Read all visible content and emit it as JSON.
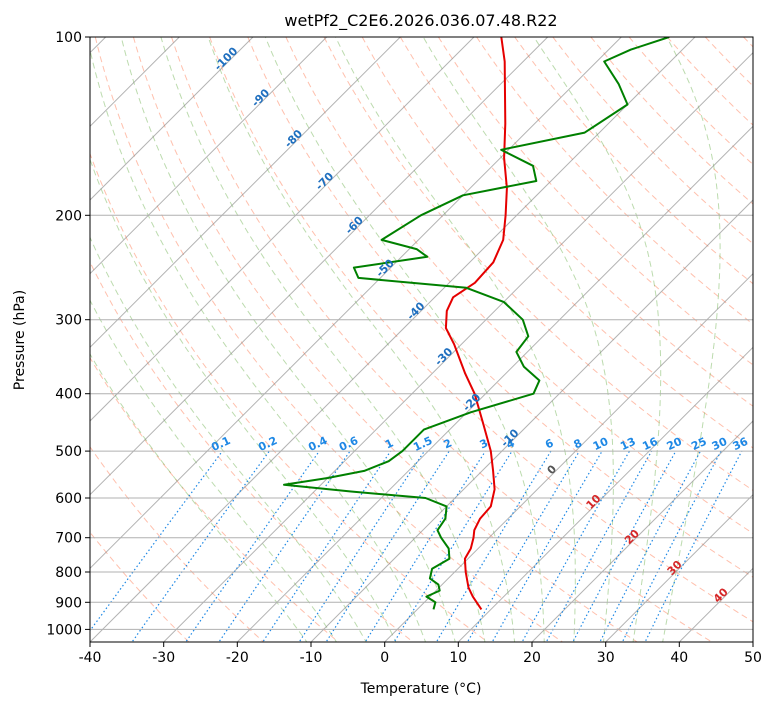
{
  "chart_data": {
    "type": "line",
    "diagram": "skew-T log-P",
    "title": "wetPf2_C2E6.2026.036.07.48.R22",
    "xlabel": "Temperature (°C)",
    "ylabel": "Pressure (hPa)",
    "xlim": [
      -40,
      50
    ],
    "ylim": [
      1050,
      100
    ],
    "x_ticks": [
      -40,
      -30,
      -20,
      -10,
      0,
      10,
      20,
      30,
      40,
      50
    ],
    "y_ticks": [
      100,
      200,
      300,
      400,
      500,
      600,
      700,
      800,
      900,
      1000
    ],
    "grid": true,
    "colors": {
      "temperature": "#e50000",
      "dewpoint": "#008000",
      "isotherm": "#808080",
      "dry_adiabat": "#ff8c69",
      "moist_adiabat": "#6ab04c",
      "mixing_ratio": "#1e88e5",
      "isotherm_label_neg": "#1f6fbf",
      "isotherm_label_pos": "#d62728",
      "isotherm_label_zero": "#555555",
      "frame": "#000000"
    },
    "series": [
      {
        "name": "Temperature",
        "points": [
          {
            "p": 925,
            "t": 8.7
          },
          {
            "p": 880,
            "t": 5.8
          },
          {
            "p": 850,
            "t": 4.0
          },
          {
            "p": 800,
            "t": 1.5
          },
          {
            "p": 760,
            "t": -0.4
          },
          {
            "p": 730,
            "t": -1.0
          },
          {
            "p": 700,
            "t": -2.1
          },
          {
            "p": 680,
            "t": -3.0
          },
          {
            "p": 650,
            "t": -3.8
          },
          {
            "p": 620,
            "t": -4.0
          },
          {
            "p": 580,
            "t": -5.8
          },
          {
            "p": 540,
            "t": -8.5
          },
          {
            "p": 500,
            "t": -11.5
          },
          {
            "p": 450,
            "t": -16.2
          },
          {
            "p": 400,
            "t": -21.5
          },
          {
            "p": 370,
            "t": -25.5
          },
          {
            "p": 330,
            "t": -31.0
          },
          {
            "p": 310,
            "t": -34.3
          },
          {
            "p": 290,
            "t": -36.5
          },
          {
            "p": 275,
            "t": -37.5
          },
          {
            "p": 260,
            "t": -36.5
          },
          {
            "p": 240,
            "t": -36.8
          },
          {
            "p": 220,
            "t": -38.5
          },
          {
            "p": 200,
            "t": -41.5
          },
          {
            "p": 180,
            "t": -45.0
          },
          {
            "p": 160,
            "t": -49.5
          },
          {
            "p": 140,
            "t": -54.0
          },
          {
            "p": 125,
            "t": -58.0
          },
          {
            "p": 110,
            "t": -62.5
          },
          {
            "p": 100,
            "t": -66.3
          }
        ]
      },
      {
        "name": "Dewpoint",
        "points": [
          {
            "p": 925,
            "t": 2.2
          },
          {
            "p": 900,
            "t": 1.5
          },
          {
            "p": 880,
            "t": -0.5
          },
          {
            "p": 860,
            "t": 0.5
          },
          {
            "p": 840,
            "t": -0.5
          },
          {
            "p": 820,
            "t": -2.5
          },
          {
            "p": 790,
            "t": -3.5
          },
          {
            "p": 760,
            "t": -2.5
          },
          {
            "p": 730,
            "t": -4.0
          },
          {
            "p": 700,
            "t": -6.5
          },
          {
            "p": 680,
            "t": -8.0
          },
          {
            "p": 650,
            "t": -8.5
          },
          {
            "p": 620,
            "t": -10.0
          },
          {
            "p": 600,
            "t": -14.0
          },
          {
            "p": 585,
            "t": -25.0
          },
          {
            "p": 570,
            "t": -35.0
          },
          {
            "p": 555,
            "t": -30.0
          },
          {
            "p": 540,
            "t": -26.0
          },
          {
            "p": 520,
            "t": -24.0
          },
          {
            "p": 500,
            "t": -23.5
          },
          {
            "p": 460,
            "t": -23.5
          },
          {
            "p": 430,
            "t": -19.5
          },
          {
            "p": 400,
            "t": -13.5
          },
          {
            "p": 380,
            "t": -14.5
          },
          {
            "p": 360,
            "t": -18.5
          },
          {
            "p": 340,
            "t": -21.5
          },
          {
            "p": 320,
            "t": -22.0
          },
          {
            "p": 300,
            "t": -25.0
          },
          {
            "p": 280,
            "t": -30.0
          },
          {
            "p": 265,
            "t": -37.0
          },
          {
            "p": 255,
            "t": -53.0
          },
          {
            "p": 245,
            "t": -55.0
          },
          {
            "p": 235,
            "t": -46.5
          },
          {
            "p": 228,
            "t": -49.0
          },
          {
            "p": 220,
            "t": -55.0
          },
          {
            "p": 200,
            "t": -53.0
          },
          {
            "p": 185,
            "t": -50.0
          },
          {
            "p": 175,
            "t": -42.0
          },
          {
            "p": 165,
            "t": -44.5
          },
          {
            "p": 155,
            "t": -51.0
          },
          {
            "p": 145,
            "t": -42.0
          },
          {
            "p": 130,
            "t": -40.0
          },
          {
            "p": 120,
            "t": -44.0
          },
          {
            "p": 110,
            "t": -49.0
          },
          {
            "p": 105,
            "t": -47.0
          },
          {
            "p": 100,
            "t": -43.5
          }
        ]
      }
    ],
    "isotherm_labels": {
      "negative": [
        "-100",
        "-90",
        "-80",
        "-70",
        "-60",
        "-50",
        "-40",
        "-30",
        "-20",
        "-10"
      ],
      "zero": "0",
      "positive": [
        "10",
        "20",
        "30",
        "40"
      ]
    },
    "mixing_ratio_labels": [
      "0.1",
      "0.2",
      "0.4",
      "0.6",
      "1",
      "1.5",
      "2",
      "3",
      "4",
      "6",
      "8",
      "10",
      "13",
      "16",
      "20",
      "25",
      "30",
      "36"
    ]
  }
}
